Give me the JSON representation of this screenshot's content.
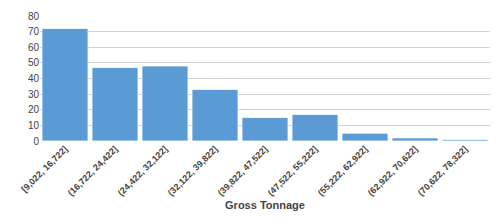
{
  "chart_data": {
    "type": "bar",
    "xlabel": "Gross Tonnage",
    "categories": [
      "[9,022, 16,722]",
      "(16,722, 24,422]",
      "(24,422, 32,122]",
      "(32,122, 39,822]",
      "(39,822, 47,522]",
      "(47,522, 55,222]",
      "(55,222, 62,922]",
      "(62,922, 70,622]",
      "(70,622, 78,322]"
    ],
    "values": [
      72,
      47,
      48,
      33,
      15,
      17,
      5,
      2,
      1
    ],
    "color": "#5B9BD5",
    "ylim": [
      0,
      80
    ],
    "yticks": [
      0,
      10,
      20,
      30,
      40,
      50,
      60,
      70,
      80
    ],
    "grid": true
  }
}
